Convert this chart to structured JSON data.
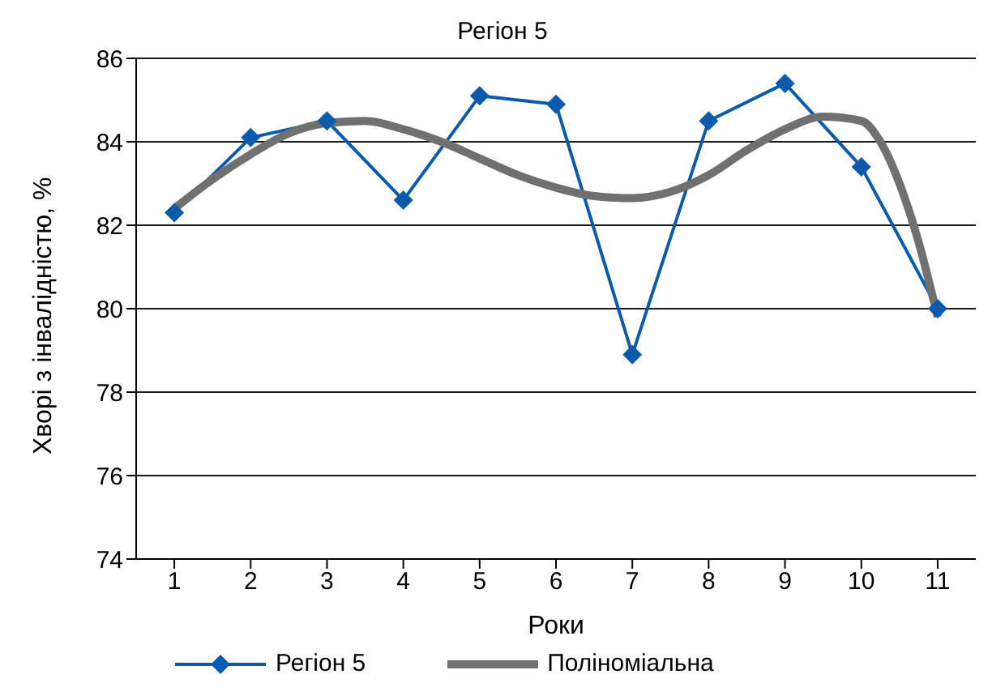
{
  "chart_data": {
    "type": "line",
    "title": "Регіон 5",
    "xlabel": "Роки",
    "ylabel": "Хворі з інвалідністю, %",
    "xlim": [
      0.5,
      11.5
    ],
    "xticks": [
      1,
      2,
      3,
      4,
      5,
      6,
      7,
      8,
      9,
      10,
      11
    ],
    "ylim": [
      74,
      86
    ],
    "yticks": [
      74,
      76,
      78,
      80,
      82,
      84,
      86
    ],
    "grid": "y",
    "legend": "bottom",
    "series": [
      {
        "name": "Регіон 5",
        "color": "#0a5bab",
        "marker": "diamond",
        "x": [
          1,
          2,
          3,
          4,
          5,
          6,
          7,
          8,
          9,
          10,
          11
        ],
        "values": [
          82.3,
          84.1,
          84.5,
          82.6,
          85.1,
          84.9,
          78.9,
          84.5,
          85.4,
          83.4,
          80.0
        ]
      },
      {
        "name": "Поліноміальна",
        "color": "#707070",
        "marker": "none",
        "x": [
          1,
          1.5,
          2,
          2.5,
          3,
          3.5,
          4,
          4.5,
          5,
          5.5,
          6,
          6.5,
          7,
          7.5,
          8,
          8.5,
          9,
          9.5,
          10,
          10.25,
          10.5,
          10.75,
          11
        ],
        "values": [
          82.4,
          83.1,
          83.7,
          84.2,
          84.45,
          84.5,
          84.3,
          84.0,
          83.6,
          83.2,
          82.9,
          82.7,
          82.65,
          82.8,
          83.2,
          83.8,
          84.3,
          84.6,
          84.5,
          84.0,
          83.0,
          81.6,
          79.8
        ]
      }
    ]
  }
}
